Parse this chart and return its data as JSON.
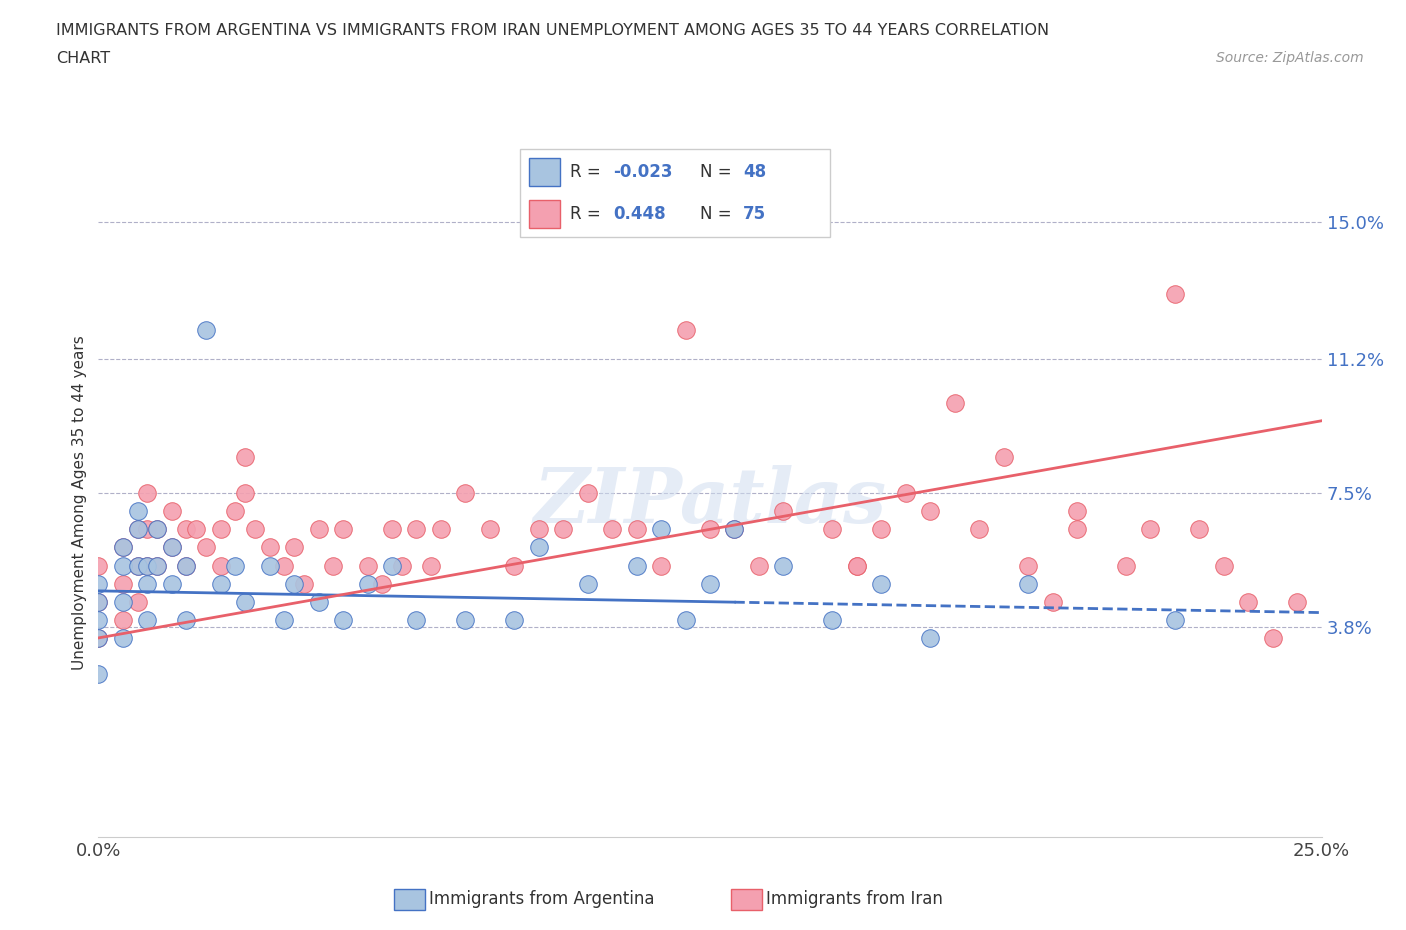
{
  "title_line1": "IMMIGRANTS FROM ARGENTINA VS IMMIGRANTS FROM IRAN UNEMPLOYMENT AMONG AGES 35 TO 44 YEARS CORRELATION",
  "title_line2": "CHART",
  "source_text": "Source: ZipAtlas.com",
  "ylabel": "Unemployment Among Ages 35 to 44 years",
  "xlim": [
    0.0,
    0.25
  ],
  "ylim": [
    -0.02,
    0.165
  ],
  "xtick_vals": [
    0.0,
    0.05,
    0.1,
    0.15,
    0.2,
    0.25
  ],
  "xtick_labels": [
    "0.0%",
    "",
    "",
    "",
    "",
    "25.0%"
  ],
  "ytick_vals": [
    0.038,
    0.075,
    0.112,
    0.15
  ],
  "ytick_labels": [
    "3.8%",
    "7.5%",
    "11.2%",
    "15.0%"
  ],
  "argentina_color": "#a8c4e0",
  "iran_color": "#f4a0b0",
  "argentina_line_color": "#4472c4",
  "iran_line_color": "#e8606a",
  "argentina_R": -0.023,
  "argentina_N": 48,
  "iran_R": 0.448,
  "iran_N": 75,
  "watermark": "ZIPatlas",
  "legend_label_argentina": "Immigrants from Argentina",
  "legend_label_iran": "Immigrants from Iran",
  "argentina_scatter_x": [
    0.0,
    0.0,
    0.0,
    0.0,
    0.0,
    0.005,
    0.005,
    0.005,
    0.005,
    0.008,
    0.008,
    0.008,
    0.01,
    0.01,
    0.01,
    0.012,
    0.012,
    0.015,
    0.015,
    0.018,
    0.018,
    0.022,
    0.025,
    0.028,
    0.03,
    0.035,
    0.038,
    0.04,
    0.045,
    0.05,
    0.055,
    0.06,
    0.065,
    0.075,
    0.085,
    0.09,
    0.1,
    0.11,
    0.115,
    0.12,
    0.125,
    0.13,
    0.14,
    0.15,
    0.16,
    0.17,
    0.19,
    0.22
  ],
  "argentina_scatter_y": [
    0.05,
    0.045,
    0.04,
    0.035,
    0.025,
    0.06,
    0.055,
    0.045,
    0.035,
    0.07,
    0.065,
    0.055,
    0.055,
    0.05,
    0.04,
    0.065,
    0.055,
    0.06,
    0.05,
    0.055,
    0.04,
    0.12,
    0.05,
    0.055,
    0.045,
    0.055,
    0.04,
    0.05,
    0.045,
    0.04,
    0.05,
    0.055,
    0.04,
    0.04,
    0.04,
    0.06,
    0.05,
    0.055,
    0.065,
    0.04,
    0.05,
    0.065,
    0.055,
    0.04,
    0.05,
    0.035,
    0.05,
    0.04
  ],
  "iran_scatter_x": [
    0.0,
    0.0,
    0.0,
    0.005,
    0.005,
    0.005,
    0.008,
    0.008,
    0.008,
    0.01,
    0.01,
    0.01,
    0.012,
    0.012,
    0.015,
    0.015,
    0.018,
    0.018,
    0.02,
    0.022,
    0.025,
    0.025,
    0.028,
    0.03,
    0.03,
    0.032,
    0.035,
    0.038,
    0.04,
    0.042,
    0.045,
    0.048,
    0.05,
    0.055,
    0.058,
    0.06,
    0.062,
    0.065,
    0.068,
    0.07,
    0.075,
    0.08,
    0.085,
    0.09,
    0.095,
    0.1,
    0.105,
    0.11,
    0.115,
    0.12,
    0.125,
    0.13,
    0.135,
    0.14,
    0.15,
    0.155,
    0.16,
    0.17,
    0.18,
    0.19,
    0.195,
    0.2,
    0.21,
    0.215,
    0.22,
    0.225,
    0.23,
    0.235,
    0.24,
    0.245,
    0.2,
    0.185,
    0.175,
    0.165,
    0.155
  ],
  "iran_scatter_y": [
    0.055,
    0.045,
    0.035,
    0.06,
    0.05,
    0.04,
    0.065,
    0.055,
    0.045,
    0.075,
    0.065,
    0.055,
    0.065,
    0.055,
    0.07,
    0.06,
    0.065,
    0.055,
    0.065,
    0.06,
    0.065,
    0.055,
    0.07,
    0.085,
    0.075,
    0.065,
    0.06,
    0.055,
    0.06,
    0.05,
    0.065,
    0.055,
    0.065,
    0.055,
    0.05,
    0.065,
    0.055,
    0.065,
    0.055,
    0.065,
    0.075,
    0.065,
    0.055,
    0.065,
    0.065,
    0.075,
    0.065,
    0.065,
    0.055,
    0.12,
    0.065,
    0.065,
    0.055,
    0.07,
    0.065,
    0.055,
    0.065,
    0.07,
    0.065,
    0.055,
    0.045,
    0.065,
    0.055,
    0.065,
    0.13,
    0.065,
    0.055,
    0.045,
    0.035,
    0.045,
    0.07,
    0.085,
    0.1,
    0.075,
    0.055
  ],
  "arg_trend_x0": 0.0,
  "arg_trend_y0": 0.048,
  "arg_trend_x1": 0.25,
  "arg_trend_y1": 0.042,
  "arg_trend_solid_end": 0.13,
  "iran_trend_x0": 0.0,
  "iran_trend_y0": 0.035,
  "iran_trend_x1": 0.25,
  "iran_trend_y1": 0.095
}
